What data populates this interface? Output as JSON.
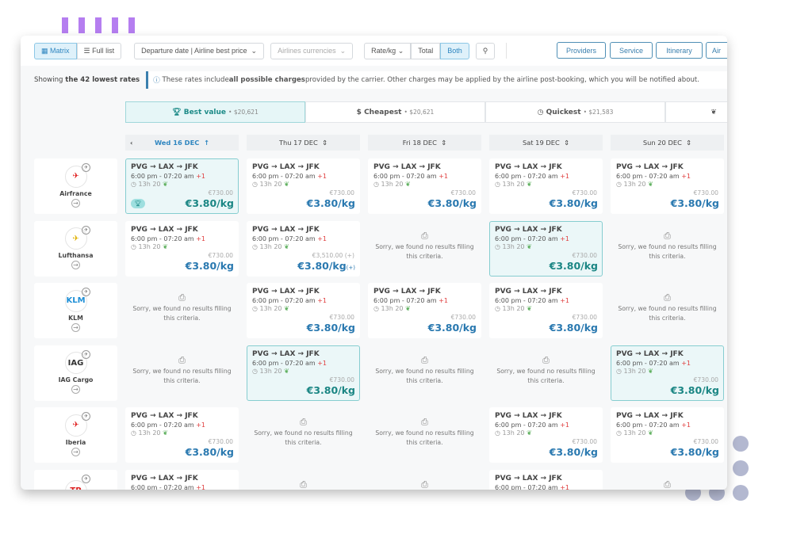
{
  "toolbar": {
    "matrix": "Matrix",
    "full_list": "Full list",
    "sort": "Departure date | Airline best price",
    "currency": "Airlines currencies",
    "rate": "Rate/kg",
    "total": "Total",
    "both": "Both",
    "providers": "Providers",
    "service": "Service",
    "itinerary": "Itinerary",
    "airlines": "Air"
  },
  "info": {
    "showing_prefix": "Showing ",
    "showing_bold": "the 42 lowest rates",
    "note_prefix": "These rates include ",
    "note_bold": "all possible charges",
    "note_suffix": " provided by the carrier. Other charges may be applied by the airline post-booking, which you will be notified about."
  },
  "tabs": [
    {
      "label": "Best value",
      "price": "• $20,621",
      "icon": "trophy-icon"
    },
    {
      "label": "Cheapest",
      "price": "• $20,621",
      "icon": "dollar-icon"
    },
    {
      "label": "Quickest",
      "price": "• $21,583",
      "icon": "clock-icon"
    },
    {
      "label": "",
      "price": "",
      "icon": "leaf-icon"
    }
  ],
  "dates": [
    "Wed 16 DEC",
    "Thu 17 DEC",
    "Fri 18 DEC",
    "Sat 19 DEC",
    "Sun 20 DEC"
  ],
  "result": {
    "route": "PVG → LAX → JFK",
    "time": "6:00 pm - 07:20 am",
    "plus": "+1",
    "duration": "13h 20",
    "total": "€730.00",
    "price": "€3.80/kg"
  },
  "no_result": "Sorry, we found no results filling this criteria.",
  "colors": {
    "accent": "#2a79b0",
    "highlight": "#1b8684",
    "highlight_bg": "#ebf7f8"
  },
  "rows": [
    {
      "airline": "Airfrance",
      "logo": "✈",
      "logo_color": "#e02020",
      "cells": [
        {
          "s": "hl",
          "best": true
        },
        {
          "s": "r"
        },
        {
          "s": "r"
        },
        {
          "s": "r"
        },
        {
          "s": "r"
        }
      ]
    },
    {
      "airline": "Lufthansa",
      "logo": "✈",
      "logo_color": "#e0b000",
      "cells": [
        {
          "s": "r"
        },
        {
          "s": "r",
          "total": "€3,510.00 (+)",
          "price_suffix": "(+)"
        },
        {
          "s": "n"
        },
        {
          "s": "hl"
        },
        {
          "s": "n"
        }
      ]
    },
    {
      "airline": "KLM",
      "logo": "KLM",
      "logo_color": "#1e8fd6",
      "cells": [
        {
          "s": "n"
        },
        {
          "s": "r"
        },
        {
          "s": "r"
        },
        {
          "s": "r"
        },
        {
          "s": "n"
        }
      ]
    },
    {
      "airline": "IAG Cargo",
      "logo": "IAG",
      "logo_color": "#333",
      "cells": [
        {
          "s": "n"
        },
        {
          "s": "hl"
        },
        {
          "s": "n"
        },
        {
          "s": "n"
        },
        {
          "s": "hl"
        }
      ]
    },
    {
      "airline": "Iberia",
      "logo": "✈",
      "logo_color": "#e02020",
      "cells": [
        {
          "s": "r"
        },
        {
          "s": "n"
        },
        {
          "s": "n"
        },
        {
          "s": "r"
        },
        {
          "s": "r"
        }
      ]
    },
    {
      "airline": "",
      "logo": "TP",
      "logo_color": "#d22",
      "cells": [
        {
          "s": "r"
        },
        {
          "s": "n"
        },
        {
          "s": "n"
        },
        {
          "s": "r"
        },
        {
          "s": "n"
        }
      ]
    }
  ]
}
